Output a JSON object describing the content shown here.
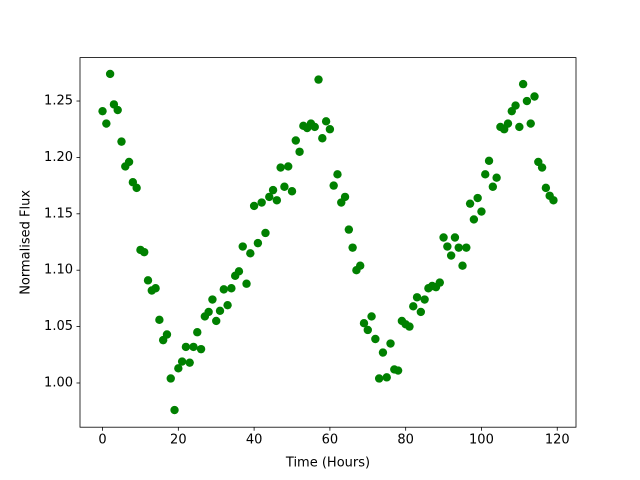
{
  "chart_data": {
    "type": "scatter",
    "xlabel": "Time (Hours)",
    "ylabel": "Normalised Flux",
    "color": "#008000",
    "x": [
      0,
      1,
      2,
      3,
      4,
      5,
      6,
      7,
      8,
      9,
      10,
      11,
      12,
      13,
      14,
      15,
      16,
      17,
      18,
      19,
      20,
      21,
      22,
      23,
      24,
      25,
      26,
      27,
      28,
      29,
      30,
      31,
      32,
      33,
      34,
      35,
      36,
      37,
      38,
      39,
      40,
      41,
      42,
      43,
      44,
      45,
      46,
      47,
      48,
      49,
      50,
      51,
      52,
      53,
      54,
      55,
      56,
      57,
      58,
      59,
      60,
      61,
      62,
      63,
      64,
      65,
      66,
      67,
      68,
      69,
      70,
      71,
      72,
      73,
      74,
      75,
      76,
      77,
      78,
      79,
      80,
      81,
      82,
      83,
      84,
      85,
      86,
      87,
      88,
      89,
      90,
      91,
      92,
      93,
      94,
      95,
      96,
      97,
      98,
      99,
      100,
      101,
      102,
      103,
      104,
      105,
      106,
      107,
      108,
      109,
      110,
      111,
      112,
      113,
      114,
      115,
      116,
      117,
      118,
      119
    ],
    "values": [
      1.241,
      1.23,
      1.274,
      1.247,
      1.242,
      1.214,
      1.192,
      1.196,
      1.178,
      1.173,
      1.118,
      1.116,
      1.091,
      1.082,
      1.084,
      1.056,
      1.038,
      1.043,
      1.004,
      0.976,
      1.013,
      1.019,
      1.032,
      1.018,
      1.032,
      1.045,
      1.03,
      1.059,
      1.063,
      1.074,
      1.055,
      1.064,
      1.083,
      1.069,
      1.084,
      1.095,
      1.099,
      1.121,
      1.088,
      1.115,
      1.157,
      1.124,
      1.16,
      1.133,
      1.165,
      1.171,
      1.162,
      1.191,
      1.174,
      1.192,
      1.17,
      1.215,
      1.205,
      1.228,
      1.226,
      1.23,
      1.227,
      1.269,
      1.217,
      1.232,
      1.225,
      1.175,
      1.185,
      1.16,
      1.165,
      1.136,
      1.12,
      1.1,
      1.104,
      1.053,
      1.047,
      1.059,
      1.039,
      1.004,
      1.027,
      1.005,
      1.035,
      1.012,
      1.011,
      1.055,
      1.052,
      1.05,
      1.068,
      1.076,
      1.063,
      1.074,
      1.084,
      1.086,
      1.085,
      1.089,
      1.129,
      1.121,
      1.113,
      1.129,
      1.12,
      1.104,
      1.12,
      1.159,
      1.145,
      1.164,
      1.152,
      1.185,
      1.197,
      1.174,
      1.182,
      1.227,
      1.225,
      1.23,
      1.241,
      1.246,
      1.227,
      1.265,
      1.25,
      1.23,
      1.254,
      1.196,
      1.191,
      1.173,
      1.166,
      1.162
    ],
    "xlim": [
      -5.95,
      124.95
    ],
    "ylim": [
      0.9608,
      1.2885
    ],
    "xticks": [
      0,
      20,
      40,
      60,
      80,
      100,
      120
    ],
    "yticks": [
      {
        "value": 1,
        "label": "1.00"
      },
      1.05,
      {
        "value": 1.1,
        "label": "1.10"
      },
      1.15,
      {
        "value": 1.2,
        "label": "1.20"
      },
      1.25
    ]
  }
}
